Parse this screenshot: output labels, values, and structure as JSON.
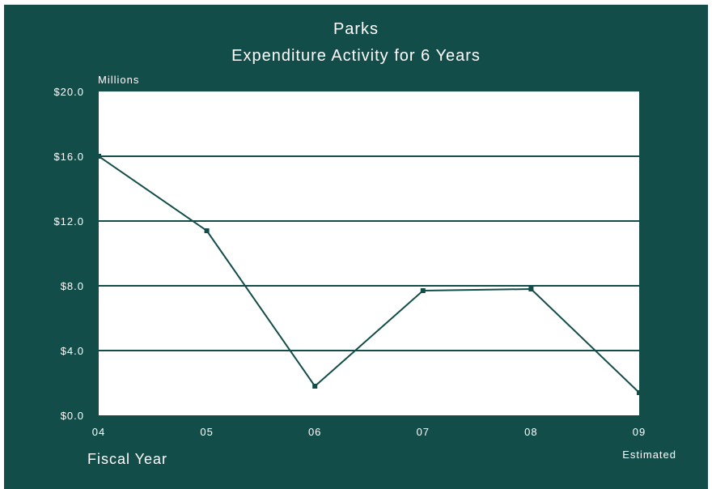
{
  "chart_data": {
    "type": "line",
    "title": "Parks",
    "subtitle": "Expenditure Activity for 6 Years",
    "xlabel": "Fiscal Year",
    "ylabel": "Millions",
    "x_note": "Estimated",
    "categories": [
      "04",
      "05",
      "06",
      "07",
      "08",
      "09"
    ],
    "series": [
      {
        "values": [
          16.0,
          11.4,
          1.8,
          7.7,
          7.8,
          1.4
        ]
      }
    ],
    "y_ticks": [
      "$0.0",
      "$4.0",
      "$8.0",
      "$12.0",
      "$16.0",
      "$20.0"
    ],
    "y_tick_values": [
      0,
      4,
      8,
      12,
      16,
      20
    ],
    "ylim": [
      0,
      20
    ],
    "grid": true,
    "colors": {
      "background": "#134d49",
      "plot_area": "#ffffff",
      "line": "#134d49",
      "grid": "#134d49",
      "text": "#ffffff"
    }
  }
}
